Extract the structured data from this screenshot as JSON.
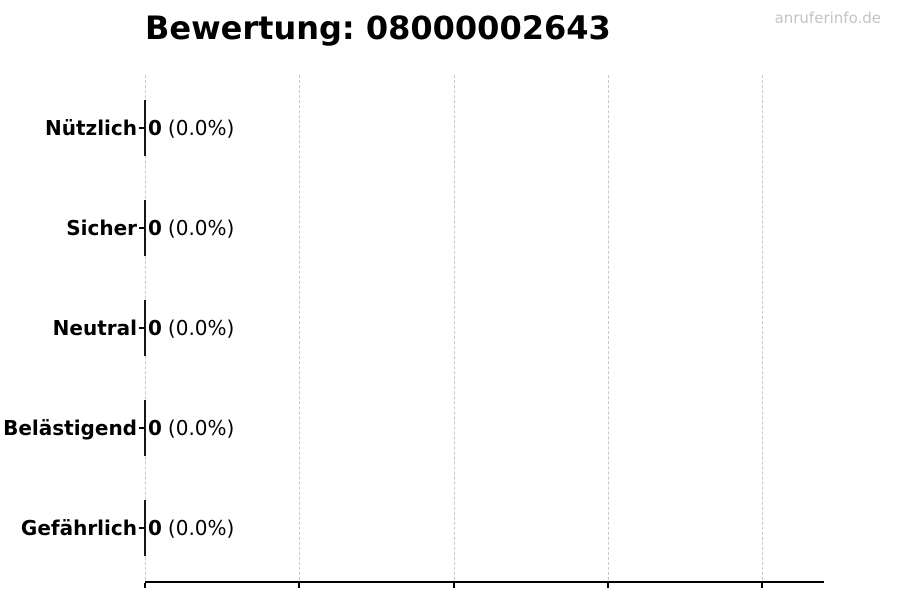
{
  "watermark": "anruferinfo.de",
  "chart_data": {
    "type": "bar",
    "orientation": "horizontal",
    "title": "Bewertung: 08000002643",
    "categories": [
      "Nützlich",
      "Sicher",
      "Neutral",
      "Belästigend",
      "Gefährlich"
    ],
    "values": [
      0,
      0,
      0,
      0,
      0
    ],
    "counts": [
      "0",
      "0",
      "0",
      "0",
      "0"
    ],
    "percents": [
      "(0.0%)",
      "(0.0%)",
      "(0.0%)",
      "(0.0%)",
      "(0.0%)"
    ],
    "value_labels": [
      "0 (0.0%)",
      "0 (0.0%)",
      "0 (0.0%)",
      "0 (0.0%)",
      "0 (0.0%)"
    ],
    "xlabel": "",
    "ylabel": "",
    "x_tick_labels": [],
    "gridline_count": 5,
    "grid": true,
    "legend": false
  },
  "colors": {
    "background": "#ffffff",
    "text": "#000000",
    "grid": "#c9c9c9",
    "axis": "#000000",
    "bar_edge": "#161616",
    "watermark": "#c4c4c4"
  }
}
